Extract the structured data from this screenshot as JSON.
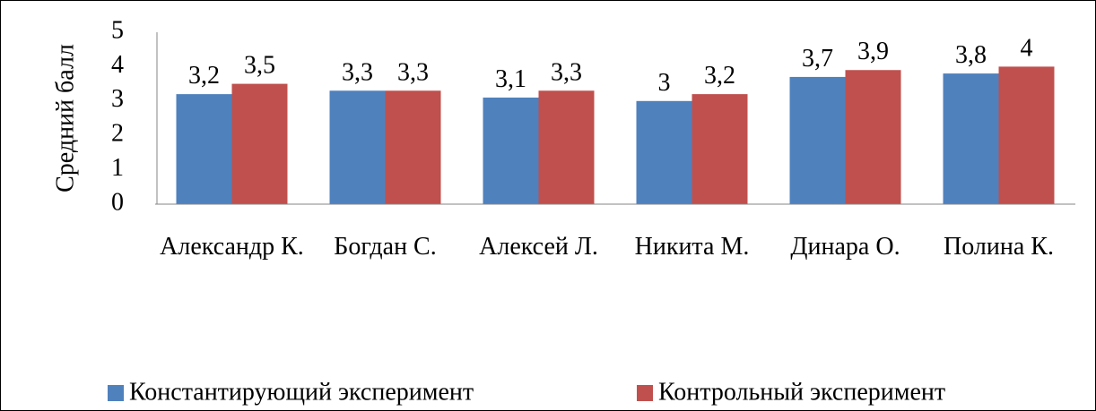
{
  "chart_data": {
    "type": "bar",
    "y_label": "Средний балл",
    "categories": [
      "Александр К.",
      "Богдан С.",
      "Алексей Л.",
      "Никита М.",
      "Динара О.",
      "Полина К."
    ],
    "series": [
      {
        "name": "Константирующий эксперимент",
        "color": "#4f81bd",
        "values": [
          3.2,
          3.3,
          3.1,
          3,
          3.7,
          3.8
        ],
        "value_labels": [
          "3,2",
          "3,3",
          "3,1",
          "3",
          "3,7",
          "3,8"
        ]
      },
      {
        "name": "Контрольный эксперимент",
        "color": "#c0504d",
        "values": [
          3.5,
          3.3,
          3.3,
          3.2,
          3.9,
          4
        ],
        "value_labels": [
          "3,5",
          "3,3",
          "3,3",
          "3,2",
          "3,9",
          "4"
        ]
      }
    ],
    "ylim": [
      0,
      5
    ],
    "yticks": [
      0,
      1,
      2,
      3,
      4,
      5
    ],
    "grid": false,
    "legend": "bottom"
  }
}
